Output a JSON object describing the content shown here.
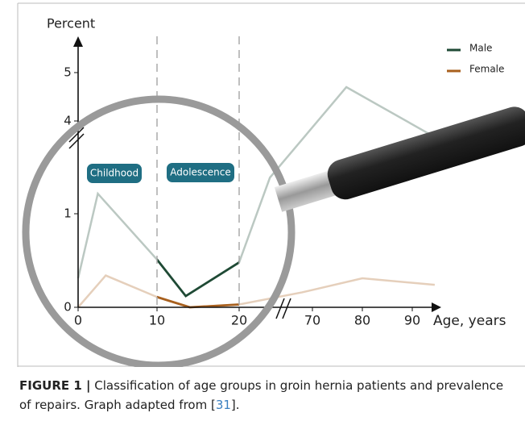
{
  "chart_data": {
    "type": "line",
    "y_label": "Percent",
    "x_label": "Age, years",
    "annotations": [
      "Childhood",
      "Adolescence"
    ],
    "series": [
      {
        "name": "Male",
        "color": "#1f4a35",
        "x": [
          0,
          2.5,
          10,
          13.5,
          20,
          41,
          76.8,
          94.5
        ],
        "values": [
          0.31,
          1.65,
          0.51,
          0.12,
          0.48,
          2.17,
          4.7,
          3.48
        ]
      },
      {
        "name": "Female",
        "color": "#a8601e",
        "x": [
          0,
          3.5,
          10,
          14,
          20,
          63,
          80,
          94.5
        ],
        "values": [
          0,
          0.34,
          0.11,
          0,
          0.03,
          0.16,
          0.31,
          0.24
        ]
      }
    ],
    "xlim": [
      0,
      97
    ],
    "xticks": [
      0,
      10,
      20,
      70,
      80,
      90
    ],
    "ylim": [
      0,
      5.7
    ],
    "yticks": [
      0,
      1,
      4,
      5
    ],
    "legend": "upper-right"
  },
  "caption": {
    "label": "FIGURE 1 |",
    "text": "Classification of age groups in groin hernia patients and prevalence of repairs. Graph adapted from [",
    "ref": "31",
    "end": "]."
  }
}
